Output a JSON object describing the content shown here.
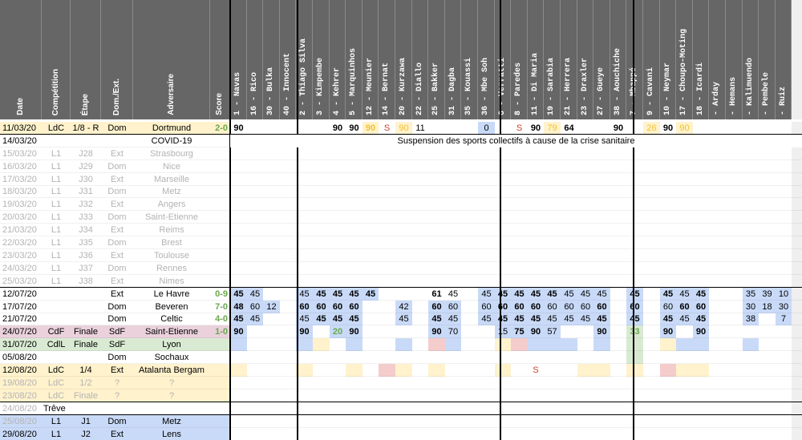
{
  "header": {
    "info": [
      "Date",
      "Compétition",
      "Étape",
      "Dom./Ext.",
      "Adversaire",
      "Score"
    ],
    "players": [
      "1 - Navas",
      "16 - Rico",
      "30 - Bulka",
      "40 - Innocent",
      "2 - Thiago Silva",
      "3 - Kimpembe",
      "4 - Kehrer",
      "5 - Marquinhos",
      "12 - Meunier",
      "14 - Bernat",
      "20 - Kurzawa",
      "22 - Diallo",
      "25 - Bakker",
      "31 - Dagba",
      "35 - Kouassi",
      "36 - Mbe Soh",
      "6 - Verratti",
      "8 - Paredes",
      "11 - Di Maria",
      "19 - Sarabia",
      "21 - Herrera",
      "23 - Draxler",
      "27 - Gueye",
      "38 - Aouchiche",
      "7 - Mbappé",
      "9 - Cavani",
      "10 - Neymar",
      "17 - Choupo-Moting",
      "18 - Icardi",
      "- Arday",
      "- Hemans",
      "- Kalimuendo",
      "- Pembele",
      "- Ruiz"
    ]
  },
  "covid_message": "Suspension des sports collectifs à cause de la crise sanitaire",
  "colors": {
    "header": "#666666",
    "ldc": "#fff2cc",
    "cdf": "#ead1dc",
    "cdl": "#d9ead3",
    "l1": "#c9daf8",
    "postponed": "#fce5cd",
    "blue": "#c9daf8",
    "green": "#d9ead3",
    "yellow": "#fff2cc",
    "red": "#f4cccc",
    "orange": "#fce5cd"
  },
  "rows": [
    {
      "date": "11/03/20",
      "comp": "LdC",
      "stage": "1/8 - R",
      "venue": "Dom",
      "opponent": "Dortmund",
      "score": "2-0",
      "bg": "ldc",
      "score_color": "green",
      "sep": true,
      "cells": [
        [
          "90",
          "b"
        ],
        [
          "",
          "blue"
        ],
        null,
        null,
        [
          "",
          "green"
        ],
        null,
        [
          "90",
          "b"
        ],
        [
          "90",
          "b"
        ],
        [
          "90",
          "yb",
          "yellow"
        ],
        [
          "S",
          "red"
        ],
        [
          "90",
          "y",
          "yellow"
        ],
        [
          "11",
          ""
        ],
        null,
        null,
        [
          "",
          "green"
        ],
        [
          "0",
          "",
          "blue"
        ],
        null,
        [
          "S",
          "red"
        ],
        [
          "90",
          "b"
        ],
        [
          "79",
          "y",
          "yellow"
        ],
        [
          "64",
          "b"
        ],
        null,
        null,
        [
          "90",
          "b"
        ],
        null,
        [
          "26",
          "y",
          "yellow"
        ],
        [
          "90",
          "b"
        ],
        [
          "90",
          "y",
          "yellow"
        ],
        null,
        [
          "",
          "blue"
        ],
        null,
        null,
        null,
        null,
        null
      ]
    },
    {
      "date": "14/03/20",
      "comp": "",
      "stage": "",
      "venue": "",
      "opponent": "COVID-19",
      "score": "",
      "bg": "white",
      "covid": true
    },
    {
      "date": "15/03/20",
      "comp": "L1",
      "stage": "J28",
      "venue": "Ext",
      "opponent": "Strasbourg",
      "score": "",
      "bg": "white",
      "grey": true
    },
    {
      "date": "16/03/20",
      "comp": "L1",
      "stage": "J29",
      "venue": "Dom",
      "opponent": "Nice",
      "score": "",
      "bg": "white",
      "grey": true
    },
    {
      "date": "17/03/20",
      "comp": "L1",
      "stage": "J30",
      "venue": "Ext",
      "opponent": "Marseille",
      "score": "",
      "bg": "white",
      "grey": true
    },
    {
      "date": "18/03/20",
      "comp": "L1",
      "stage": "J31",
      "venue": "Dom",
      "opponent": "Metz",
      "score": "",
      "bg": "white",
      "grey": true
    },
    {
      "date": "19/03/20",
      "comp": "L1",
      "stage": "J32",
      "venue": "Ext",
      "opponent": "Angers",
      "score": "",
      "bg": "white",
      "grey": true
    },
    {
      "date": "20/03/20",
      "comp": "L1",
      "stage": "J33",
      "venue": "Dom",
      "opponent": "Saint-Etienne",
      "score": "",
      "bg": "white",
      "grey": true
    },
    {
      "date": "21/03/20",
      "comp": "L1",
      "stage": "J34",
      "venue": "Ext",
      "opponent": "Reims",
      "score": "",
      "bg": "white",
      "grey": true
    },
    {
      "date": "22/03/20",
      "comp": "L1",
      "stage": "J35",
      "venue": "Dom",
      "opponent": "Brest",
      "score": "",
      "bg": "white",
      "grey": true
    },
    {
      "date": "23/03/20",
      "comp": "L1",
      "stage": "J36",
      "venue": "Ext",
      "opponent": "Toulouse",
      "score": "",
      "bg": "white",
      "grey": true
    },
    {
      "date": "24/03/20",
      "comp": "L1",
      "stage": "J37",
      "venue": "Dom",
      "opponent": "Rennes",
      "score": "",
      "bg": "white",
      "grey": true
    },
    {
      "date": "25/03/20",
      "comp": "L1",
      "stage": "J38",
      "venue": "Ext",
      "opponent": "Nimes",
      "score": "",
      "bg": "white",
      "grey": true,
      "sep": true
    },
    {
      "date": "12/07/20",
      "comp": "",
      "stage": "",
      "venue": "Ext",
      "opponent": "Le Havre",
      "score": "0-9",
      "bg": "white",
      "score_color": "green",
      "cells": [
        [
          "45",
          "b",
          "blue"
        ],
        [
          "45",
          "",
          "blue"
        ],
        null,
        null,
        [
          "45",
          "",
          "blue"
        ],
        [
          "45",
          "b",
          "blue"
        ],
        [
          "45",
          "b",
          "blue"
        ],
        [
          "45",
          "b",
          "blue"
        ],
        [
          "45",
          "b",
          "blue"
        ],
        null,
        [
          "",
          "green"
        ],
        null,
        [
          "61",
          "b"
        ],
        [
          "45",
          "",
          ""
        ],
        null,
        [
          "45",
          "",
          "blue"
        ],
        [
          "45",
          "b",
          "blue"
        ],
        [
          "45",
          "b",
          "blue"
        ],
        [
          "45",
          "b",
          "blue"
        ],
        [
          "45",
          "b",
          "blue"
        ],
        [
          "45",
          "",
          "blue"
        ],
        [
          "45",
          "",
          "blue"
        ],
        [
          "45",
          "",
          "blue"
        ],
        null,
        [
          "45",
          "b",
          "blue"
        ],
        null,
        [
          "45",
          "b",
          "blue"
        ],
        [
          "45",
          "",
          "blue"
        ],
        [
          "45",
          "b",
          "blue"
        ],
        null,
        null,
        [
          "35",
          "",
          "blue"
        ],
        [
          "39",
          "",
          "blue"
        ],
        [
          "10",
          "",
          "blue"
        ]
      ]
    },
    {
      "date": "17/07/20",
      "comp": "",
      "stage": "",
      "venue": "Dom",
      "opponent": "Beveren",
      "score": "7-0",
      "bg": "white",
      "score_color": "green",
      "cells": [
        [
          "48",
          "b",
          "blue"
        ],
        [
          "60",
          "",
          "blue"
        ],
        [
          "12",
          "",
          "blue"
        ],
        null,
        [
          "60",
          "b",
          "blue"
        ],
        [
          "60",
          "b",
          "blue"
        ],
        [
          "60",
          "b",
          "blue"
        ],
        [
          "60",
          "b",
          "blue"
        ],
        null,
        null,
        [
          "42",
          "",
          "blue"
        ],
        null,
        [
          "60",
          "b",
          "blue"
        ],
        [
          "60",
          "",
          "blue"
        ],
        null,
        [
          "60",
          "",
          "blue"
        ],
        [
          "60",
          "b",
          "blue"
        ],
        [
          "60",
          "b",
          "blue"
        ],
        [
          "60",
          "b",
          "blue"
        ],
        [
          "60",
          "",
          "blue"
        ],
        [
          "60",
          "",
          "blue"
        ],
        [
          "60",
          "",
          "blue"
        ],
        [
          "60",
          "b",
          "blue"
        ],
        null,
        [
          "60",
          "b",
          "blue"
        ],
        null,
        [
          "60",
          "",
          "blue"
        ],
        [
          "60",
          "b",
          "blue"
        ],
        [
          "60",
          "b",
          "blue"
        ],
        null,
        null,
        [
          "30",
          "",
          "blue"
        ],
        [
          "18",
          "",
          "blue"
        ],
        [
          "30",
          "",
          "blue"
        ]
      ]
    },
    {
      "date": "21/07/20",
      "comp": "",
      "stage": "",
      "venue": "Dom",
      "opponent": "Celtic",
      "score": "4-0",
      "bg": "white",
      "score_color": "green",
      "cells": [
        [
          "45",
          "b",
          "blue"
        ],
        [
          "45",
          "",
          "blue"
        ],
        null,
        null,
        [
          "45",
          "",
          "blue"
        ],
        [
          "45",
          "b",
          "blue"
        ],
        [
          "45",
          "b",
          "blue"
        ],
        [
          "45",
          "b",
          "blue"
        ],
        null,
        null,
        [
          "45",
          "",
          "blue"
        ],
        null,
        [
          "45",
          "b",
          "blue"
        ],
        [
          "45",
          "",
          "blue"
        ],
        null,
        [
          "45",
          "",
          "blue"
        ],
        [
          "45",
          "b",
          "blue"
        ],
        [
          "45",
          "b",
          "blue"
        ],
        [
          "45",
          "b",
          "blue"
        ],
        [
          "45",
          "",
          "blue"
        ],
        [
          "45",
          "",
          "blue"
        ],
        [
          "45",
          "",
          "blue"
        ],
        [
          "45",
          "b",
          "blue"
        ],
        null,
        [
          "45",
          "b",
          "blue"
        ],
        null,
        [
          "45",
          "b",
          "blue"
        ],
        [
          "45",
          "",
          "blue"
        ],
        [
          "45",
          "b",
          "blue"
        ],
        null,
        null,
        [
          "38",
          "",
          "blue"
        ],
        null,
        [
          "7",
          "",
          "blue"
        ]
      ]
    },
    {
      "date": "24/07/20",
      "comp": "CdF",
      "stage": "Finale",
      "venue": "SdF",
      "opponent": "Saint-Etienne",
      "score": "1-0",
      "bg": "cdf",
      "score_color": "green",
      "cells": [
        [
          "90",
          "b",
          "blue"
        ],
        null,
        null,
        null,
        [
          "90",
          "b",
          "blue"
        ],
        null,
        [
          "20",
          "g",
          "blue"
        ],
        [
          "90",
          "b",
          "blue"
        ],
        null,
        null,
        null,
        null,
        [
          "90",
          "b",
          "blue"
        ],
        [
          "70",
          "",
          "blue"
        ],
        null,
        null,
        [
          "15",
          "",
          "blue"
        ],
        [
          "75",
          "b",
          "blue"
        ],
        [
          "90",
          "b",
          "blue"
        ],
        [
          "57",
          "",
          "blue"
        ],
        null,
        null,
        [
          "90",
          "b",
          "blue"
        ],
        null,
        [
          "33",
          "g",
          "green"
        ],
        null,
        [
          "90",
          "b",
          "blue"
        ],
        null,
        [
          "90",
          "b",
          "blue"
        ],
        null,
        null,
        null,
        null,
        null
      ]
    },
    {
      "date": "31/07/20",
      "comp": "CdlL",
      "stage": "Finale",
      "venue": "SdF",
      "opponent": "Lyon",
      "score": "",
      "bg": "cdl",
      "cells": [
        [
          "",
          "",
          "blue"
        ],
        null,
        null,
        null,
        [
          "",
          "",
          "blue"
        ],
        [
          "",
          "",
          "yellow"
        ],
        null,
        [
          "",
          "",
          "blue"
        ],
        null,
        null,
        [
          "",
          "",
          "blue"
        ],
        null,
        [
          "",
          "",
          "red"
        ],
        [
          "",
          "",
          "blue"
        ],
        null,
        null,
        [
          "",
          "",
          "yellow"
        ],
        [
          "",
          "",
          "red"
        ],
        [
          "",
          "",
          "blue"
        ],
        [
          "",
          "",
          "blue"
        ],
        [
          "",
          "",
          "blue"
        ],
        null,
        [
          "",
          "",
          "blue"
        ],
        null,
        [
          "",
          "",
          "green"
        ],
        null,
        [
          "",
          "",
          "yellow"
        ],
        [
          "",
          "",
          "blue"
        ],
        [
          "",
          "",
          "blue"
        ],
        null,
        null,
        [
          "",
          "",
          "blue"
        ],
        null,
        null
      ]
    },
    {
      "date": "05/08/20",
      "comp": "",
      "stage": "",
      "venue": "Dom",
      "opponent": "Sochaux",
      "score": "",
      "bg": "white",
      "cells": [
        null,
        null,
        null,
        null,
        null,
        null,
        null,
        null,
        null,
        null,
        null,
        null,
        null,
        null,
        null,
        null,
        null,
        null,
        null,
        null,
        null,
        null,
        null,
        null,
        [
          "",
          "",
          "green"
        ],
        null,
        null,
        null,
        null,
        null,
        null,
        null,
        null,
        null
      ]
    },
    {
      "date": "12/08/20",
      "comp": "LdC",
      "stage": "1/4",
      "venue": "Ext",
      "opponent": "Atalanta Bergam",
      "score": "",
      "bg": "ldc",
      "cells": [
        [
          "",
          "",
          "yellow"
        ],
        null,
        null,
        null,
        [
          "",
          "",
          "yellow"
        ],
        null,
        null,
        [
          "",
          "",
          "yellow"
        ],
        null,
        [
          "",
          "",
          "red"
        ],
        [
          "",
          "",
          "yellow"
        ],
        null,
        [
          "",
          "",
          "yellow"
        ],
        null,
        null,
        null,
        [
          "",
          "",
          "yellow"
        ],
        null,
        [
          "S",
          "r"
        ],
        null,
        null,
        [
          "",
          "",
          "yellow"
        ],
        [
          "",
          "",
          "yellow"
        ],
        null,
        [
          "",
          "",
          "yellow"
        ],
        null,
        [
          "",
          "",
          "red"
        ],
        [
          "",
          "",
          "yellow"
        ],
        [
          "",
          "",
          "yellow"
        ],
        null,
        null,
        null,
        null,
        null
      ]
    },
    {
      "date": "19/08/20",
      "comp": "LdC",
      "stage": "1/2",
      "venue": "?",
      "opponent": "?",
      "score": "",
      "bg": "ldc",
      "grey": true
    },
    {
      "date": "23/08/20",
      "comp": "LdC",
      "stage": "Finale",
      "venue": "?",
      "opponent": "?",
      "score": "",
      "bg": "ldc",
      "grey": true,
      "sep": true
    },
    {
      "date": "24/08/20",
      "comp": "Trêve",
      "stage": "",
      "venue": "",
      "opponent": "",
      "score": "",
      "bg": "white",
      "grey_date": true,
      "sep": true
    },
    {
      "date": "25/08/20",
      "comp": "L1",
      "stage": "J1",
      "venue": "Dom",
      "opponent": "Metz",
      "score": "",
      "bg": "l1",
      "grey_date": true
    },
    {
      "date": "29/08/20",
      "comp": "L1",
      "stage": "J2",
      "venue": "Ext",
      "opponent": "Lens",
      "score": "",
      "bg": "l1"
    }
  ]
}
